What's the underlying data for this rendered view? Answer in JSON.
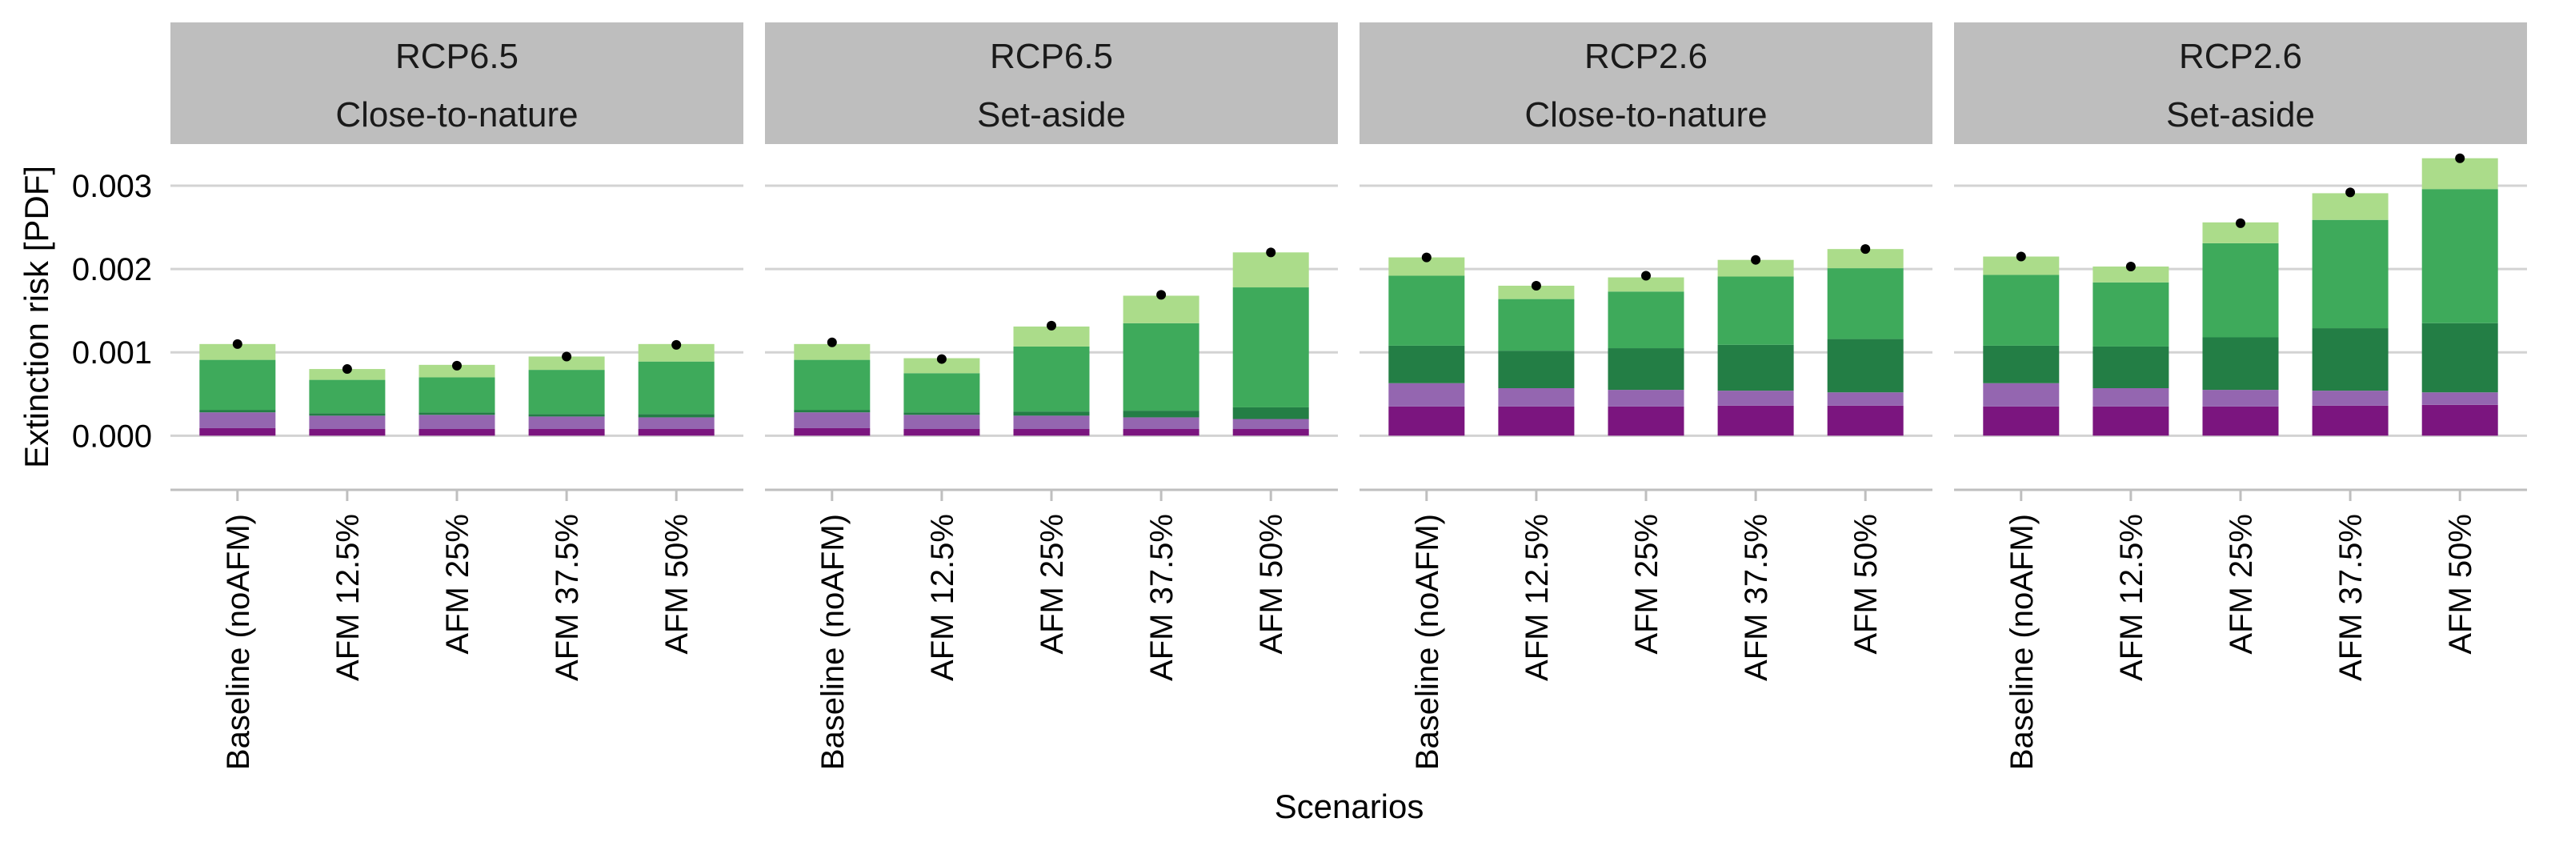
{
  "chart_data": {
    "type": "bar",
    "stacked": true,
    "xlabel": "Scenarios",
    "ylabel": "Extinction risk [PDF]",
    "ylim": [
      -0.00065,
      0.0035
    ],
    "yticks": [
      0.0,
      0.001,
      0.002,
      0.003
    ],
    "ytick_labels": [
      "0.000",
      "0.001",
      "0.002",
      "0.003"
    ],
    "grid": true,
    "legend": "none",
    "categories": [
      "Baseline (noAFM)",
      "AFM 12.5%",
      "AFM 25%",
      "AFM 37.5%",
      "AFM 50%"
    ],
    "series_colors": [
      "#7b157f",
      "#9466b0",
      "#237e45",
      "#3eaa5b",
      "#abdc8a"
    ],
    "total_marker_color": "#000000",
    "facets": [
      {
        "title_line1": "RCP6.5",
        "title_line2": "Close-to-nature",
        "stacks": [
          [
            9e-05,
            0.00019,
            3e-05,
            0.0006,
            0.00019
          ],
          [
            8e-05,
            0.00016,
            3e-05,
            0.0004,
            0.00013
          ],
          [
            8e-05,
            0.00017,
            3e-05,
            0.00042,
            0.00015
          ],
          [
            8e-05,
            0.00015,
            3e-05,
            0.00053,
            0.00016
          ],
          [
            8e-05,
            0.00014,
            4e-05,
            0.00063,
            0.00021
          ]
        ],
        "totals": [
          0.0011,
          0.0008,
          0.00084,
          0.00095,
          0.00109
        ]
      },
      {
        "title_line1": "RCP6.5",
        "title_line2": "Set-aside",
        "stacks": [
          [
            9e-05,
            0.00019,
            3e-05,
            0.0006,
            0.00019
          ],
          [
            8e-05,
            0.00017,
            3e-05,
            0.00047,
            0.00018
          ],
          [
            8e-05,
            0.00016,
            5e-05,
            0.00078,
            0.00024
          ],
          [
            8e-05,
            0.00014,
            8e-05,
            0.00105,
            0.00033
          ],
          [
            8e-05,
            0.00012,
            0.00014,
            0.00144,
            0.00042
          ]
        ],
        "totals": [
          0.00112,
          0.00092,
          0.00132,
          0.00169,
          0.0022
        ]
      },
      {
        "title_line1": "RCP2.6",
        "title_line2": "Close-to-nature",
        "stacks": [
          [
            0.00035,
            0.00028,
            0.00045,
            0.00084,
            0.00022
          ],
          [
            0.00035,
            0.00022,
            0.00045,
            0.00062,
            0.00016
          ],
          [
            0.00035,
            0.0002,
            0.0005,
            0.00068,
            0.00017
          ],
          [
            0.00036,
            0.00018,
            0.00055,
            0.00082,
            0.0002
          ],
          [
            0.00036,
            0.00016,
            0.00064,
            0.00085,
            0.00023
          ]
        ],
        "totals": [
          0.00214,
          0.0018,
          0.00192,
          0.00211,
          0.00224
        ]
      },
      {
        "title_line1": "RCP2.6",
        "title_line2": "Set-aside",
        "stacks": [
          [
            0.00035,
            0.00028,
            0.00045,
            0.00085,
            0.00022
          ],
          [
            0.00035,
            0.00022,
            0.0005,
            0.00077,
            0.00019
          ],
          [
            0.00035,
            0.0002,
            0.00063,
            0.00113,
            0.00025
          ],
          [
            0.00036,
            0.00018,
            0.00075,
            0.0013,
            0.00032
          ],
          [
            0.00037,
            0.00015,
            0.00083,
            0.00161,
            0.00037
          ]
        ],
        "totals": [
          0.00215,
          0.00203,
          0.00255,
          0.00292,
          0.00333
        ]
      }
    ]
  }
}
